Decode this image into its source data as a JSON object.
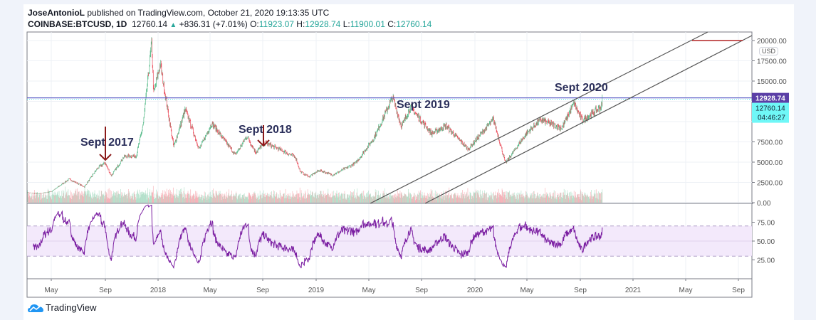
{
  "header": {
    "author": "JoseAntonioL",
    "published_text": "published on TradingView.com, October 21, 2020 19:13:35 UTC",
    "symbol": "COINBASE:BTCUSD, 1D",
    "last": "12760.14",
    "change": "+836.31 (+7.01%)",
    "o_label": "O:",
    "o": "11923.07",
    "h_label": "H:",
    "h": "12928.74",
    "l_label": "L:",
    "l": "11900.01",
    "c_label": "C:",
    "c": "12760.14"
  },
  "currency": "USD",
  "price_axis": {
    "ticks": [
      "0.00",
      "2500.00",
      "5000.00",
      "7500.00",
      "15000.00",
      "17500.00",
      "20000.00"
    ],
    "high_badge": "12928.74",
    "last_badge": "12760.14",
    "countdown": "04:46:27"
  },
  "rsi_axis": {
    "ticks": [
      "25.00",
      "50.00",
      "75.00"
    ],
    "upper": 70,
    "lower": 30
  },
  "time_axis": [
    "May",
    "Sep",
    "2018",
    "May",
    "Sep",
    "2019",
    "May",
    "Sep",
    "2020",
    "May",
    "Sep",
    "2021",
    "May",
    "Sep"
  ],
  "annotations": [
    "Sept 2017",
    "Sept 2018",
    "Sept 2019",
    "Sept 2020"
  ],
  "colors": {
    "up": "#53b987",
    "down": "#eb4d5c",
    "rsi": "#7b1fa2",
    "rsi_band": "#f3e9fb",
    "annotation": "#2a2e5a",
    "arrow": "#8b1a1a",
    "high_line": "#5b5fc7",
    "last_line": "#4de8f0",
    "badge_high": "#5b3fa6",
    "badge_last": "#6ff7f7"
  },
  "logo": "TradingView",
  "chart_data": {
    "type": "candlestick",
    "symbol": "COINBASE:BTCUSD",
    "interval": "1D",
    "ylim": [
      0,
      20000
    ],
    "rsi_ylim": [
      0,
      100
    ],
    "xlim": [
      "2017-03-05",
      "2021-10-15"
    ],
    "approx_close": [
      [
        "2017-03-05",
        1250
      ],
      [
        "2017-04-01",
        1080
      ],
      [
        "2017-05-01",
        1400
      ],
      [
        "2017-06-10",
        2900
      ],
      [
        "2017-07-15",
        1950
      ],
      [
        "2017-08-15",
        4300
      ],
      [
        "2017-09-01",
        4900
      ],
      [
        "2017-09-15",
        3300
      ],
      [
        "2017-10-15",
        5700
      ],
      [
        "2017-11-12",
        5800
      ],
      [
        "2017-11-28",
        9800
      ],
      [
        "2017-12-17",
        19700
      ],
      [
        "2017-12-22",
        13500
      ],
      [
        "2018-01-06",
        17100
      ],
      [
        "2018-02-06",
        6900
      ],
      [
        "2018-03-05",
        11500
      ],
      [
        "2018-04-06",
        6600
      ],
      [
        "2018-05-05",
        9800
      ],
      [
        "2018-06-28",
        5900
      ],
      [
        "2018-07-25",
        8200
      ],
      [
        "2018-08-14",
        6200
      ],
      [
        "2018-09-04",
        7400
      ],
      [
        "2018-10-15",
        6400
      ],
      [
        "2018-11-14",
        5600
      ],
      [
        "2018-11-25",
        3800
      ],
      [
        "2018-12-15",
        3200
      ],
      [
        "2019-01-08",
        4000
      ],
      [
        "2019-02-07",
        3400
      ],
      [
        "2019-04-02",
        4900
      ],
      [
        "2019-05-14",
        8000
      ],
      [
        "2019-06-26",
        13000
      ],
      [
        "2019-07-16",
        9400
      ],
      [
        "2019-08-06",
        11800
      ],
      [
        "2019-09-24",
        8500
      ],
      [
        "2019-10-26",
        9500
      ],
      [
        "2019-12-17",
        6600
      ],
      [
        "2020-02-13",
        10300
      ],
      [
        "2020-03-12",
        4900
      ],
      [
        "2020-04-30",
        8600
      ],
      [
        "2020-06-01",
        10200
      ],
      [
        "2020-07-20",
        9200
      ],
      [
        "2020-08-17",
        12300
      ],
      [
        "2020-09-05",
        10100
      ],
      [
        "2020-10-20",
        11900
      ],
      [
        "2020-10-21",
        12760
      ]
    ],
    "horizontal_line": 12928.74
  }
}
